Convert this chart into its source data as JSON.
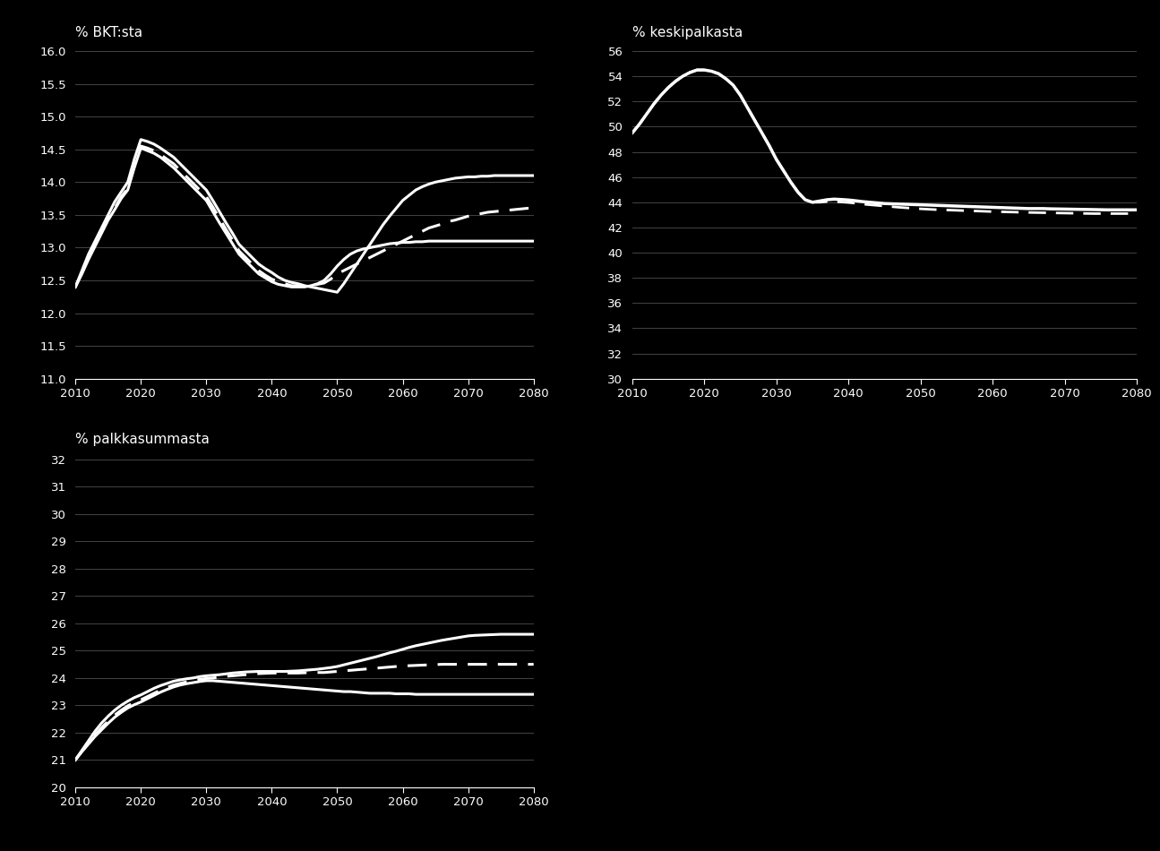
{
  "bg_color": "#000000",
  "text_color": "#ffffff",
  "grid_color": "#444444",
  "line_color": "#ffffff",
  "chart1": {
    "ylabel": "% BKT:sta",
    "ylim": [
      11.0,
      16.0
    ],
    "yticks": [
      11.0,
      11.5,
      12.0,
      12.5,
      13.0,
      13.5,
      14.0,
      14.5,
      15.0,
      15.5,
      16.0
    ],
    "xlim": [
      2010,
      2080
    ],
    "xticks": [
      2010,
      2020,
      2030,
      2040,
      2050,
      2060,
      2070,
      2080
    ],
    "years": [
      2010,
      2011,
      2012,
      2013,
      2014,
      2015,
      2016,
      2017,
      2018,
      2019,
      2020,
      2021,
      2022,
      2023,
      2024,
      2025,
      2026,
      2027,
      2028,
      2029,
      2030,
      2031,
      2032,
      2033,
      2034,
      2035,
      2036,
      2037,
      2038,
      2039,
      2040,
      2041,
      2042,
      2043,
      2044,
      2045,
      2046,
      2047,
      2048,
      2049,
      2050,
      2051,
      2052,
      2053,
      2054,
      2055,
      2056,
      2057,
      2058,
      2059,
      2060,
      2061,
      2062,
      2063,
      2064,
      2065,
      2066,
      2067,
      2068,
      2069,
      2070,
      2071,
      2072,
      2073,
      2074,
      2075,
      2076,
      2077,
      2078,
      2079,
      2080
    ],
    "line_upper": [
      12.4,
      12.65,
      12.9,
      13.1,
      13.3,
      13.5,
      13.7,
      13.85,
      14.0,
      14.35,
      14.65,
      14.62,
      14.58,
      14.52,
      14.45,
      14.38,
      14.28,
      14.18,
      14.08,
      13.98,
      13.88,
      13.72,
      13.55,
      13.38,
      13.22,
      13.05,
      12.95,
      12.85,
      12.75,
      12.68,
      12.62,
      12.55,
      12.5,
      12.47,
      12.45,
      12.42,
      12.4,
      12.38,
      12.36,
      12.34,
      12.32,
      12.45,
      12.6,
      12.75,
      12.9,
      13.05,
      13.2,
      13.35,
      13.48,
      13.6,
      13.72,
      13.8,
      13.88,
      13.93,
      13.97,
      14.0,
      14.02,
      14.04,
      14.06,
      14.07,
      14.08,
      14.08,
      14.09,
      14.09,
      14.1,
      14.1,
      14.1,
      14.1,
      14.1,
      14.1,
      14.1
    ],
    "line_mid": [
      12.4,
      12.62,
      12.85,
      13.05,
      13.25,
      13.45,
      13.6,
      13.78,
      13.9,
      14.25,
      14.55,
      14.52,
      14.48,
      14.42,
      14.35,
      14.28,
      14.18,
      14.08,
      13.98,
      13.88,
      13.78,
      13.62,
      13.45,
      13.28,
      13.12,
      12.95,
      12.85,
      12.75,
      12.65,
      12.58,
      12.52,
      12.48,
      12.45,
      12.42,
      12.42,
      12.42,
      12.42,
      12.44,
      12.46,
      12.52,
      12.6,
      12.65,
      12.7,
      12.75,
      12.8,
      12.85,
      12.9,
      12.95,
      13.0,
      13.05,
      13.1,
      13.15,
      13.2,
      13.25,
      13.3,
      13.33,
      13.36,
      13.4,
      13.42,
      13.45,
      13.48,
      13.5,
      13.52,
      13.54,
      13.55,
      13.56,
      13.57,
      13.58,
      13.59,
      13.6,
      13.6
    ],
    "line_lower": [
      12.4,
      12.6,
      12.82,
      13.02,
      13.22,
      13.42,
      13.58,
      13.75,
      13.88,
      14.22,
      14.52,
      14.48,
      14.44,
      14.38,
      14.3,
      14.22,
      14.12,
      14.02,
      13.92,
      13.82,
      13.72,
      13.55,
      13.38,
      13.22,
      13.06,
      12.9,
      12.8,
      12.7,
      12.6,
      12.54,
      12.48,
      12.44,
      12.42,
      12.4,
      12.4,
      12.4,
      12.42,
      12.45,
      12.5,
      12.6,
      12.72,
      12.82,
      12.9,
      12.95,
      12.98,
      13.0,
      13.02,
      13.04,
      13.06,
      13.07,
      13.08,
      13.08,
      13.09,
      13.09,
      13.1,
      13.1,
      13.1,
      13.1,
      13.1,
      13.1,
      13.1,
      13.1,
      13.1,
      13.1,
      13.1,
      13.1,
      13.1,
      13.1,
      13.1,
      13.1,
      13.1
    ]
  },
  "chart2": {
    "ylabel": "% keskipalkasta",
    "ylim": [
      30,
      56
    ],
    "yticks": [
      30,
      32,
      34,
      36,
      38,
      40,
      42,
      44,
      46,
      48,
      50,
      52,
      54,
      56
    ],
    "xlim": [
      2010,
      2080
    ],
    "xticks": [
      2010,
      2020,
      2030,
      2040,
      2050,
      2060,
      2070,
      2080
    ],
    "years": [
      2010,
      2011,
      2012,
      2013,
      2014,
      2015,
      2016,
      2017,
      2018,
      2019,
      2020,
      2021,
      2022,
      2023,
      2024,
      2025,
      2026,
      2027,
      2028,
      2029,
      2030,
      2031,
      2032,
      2033,
      2034,
      2035,
      2036,
      2037,
      2038,
      2039,
      2040,
      2041,
      2042,
      2043,
      2044,
      2045,
      2046,
      2047,
      2048,
      2049,
      2050,
      2051,
      2052,
      2053,
      2054,
      2055,
      2056,
      2057,
      2058,
      2059,
      2060,
      2061,
      2062,
      2063,
      2064,
      2065,
      2066,
      2067,
      2068,
      2069,
      2070,
      2071,
      2072,
      2073,
      2074,
      2075,
      2076,
      2077,
      2078,
      2079,
      2080
    ],
    "line_main": [
      49.5,
      50.2,
      51.0,
      51.8,
      52.5,
      53.1,
      53.6,
      54.0,
      54.3,
      54.5,
      54.5,
      54.4,
      54.2,
      53.8,
      53.3,
      52.5,
      51.5,
      50.5,
      49.5,
      48.5,
      47.4,
      46.5,
      45.6,
      44.8,
      44.2,
      44.0,
      44.1,
      44.2,
      44.25,
      44.22,
      44.18,
      44.12,
      44.05,
      44.0,
      43.95,
      43.9,
      43.88,
      43.86,
      43.84,
      43.82,
      43.8,
      43.78,
      43.76,
      43.74,
      43.72,
      43.7,
      43.68,
      43.66,
      43.64,
      43.62,
      43.6,
      43.58,
      43.56,
      43.54,
      43.52,
      43.5,
      43.5,
      43.5,
      43.48,
      43.47,
      43.46,
      43.45,
      43.44,
      43.43,
      43.42,
      43.41,
      43.4,
      43.4,
      43.4,
      43.4,
      43.4
    ],
    "line_dashed": [
      49.5,
      50.2,
      51.0,
      51.8,
      52.5,
      53.1,
      53.6,
      54.0,
      54.3,
      54.5,
      54.5,
      54.4,
      54.2,
      53.8,
      53.3,
      52.5,
      51.5,
      50.5,
      49.5,
      48.5,
      47.4,
      46.5,
      45.6,
      44.8,
      44.2,
      44.0,
      44.0,
      44.05,
      44.05,
      44.02,
      43.98,
      43.92,
      43.85,
      43.8,
      43.75,
      43.7,
      43.65,
      43.6,
      43.56,
      43.52,
      43.48,
      43.45,
      43.42,
      43.4,
      43.38,
      43.36,
      43.34,
      43.32,
      43.3,
      43.28,
      43.26,
      43.25,
      43.23,
      43.22,
      43.2,
      43.19,
      43.18,
      43.17,
      43.16,
      43.15,
      43.14,
      43.13,
      43.12,
      43.11,
      43.1,
      43.1,
      43.1,
      43.1,
      43.1,
      43.1,
      43.1
    ]
  },
  "chart3": {
    "ylabel": "% palkkasummasta",
    "ylim": [
      20,
      32
    ],
    "yticks": [
      20,
      21,
      22,
      23,
      24,
      25,
      26,
      27,
      28,
      29,
      30,
      31,
      32
    ],
    "xlim": [
      2010,
      2080
    ],
    "xticks": [
      2010,
      2020,
      2030,
      2040,
      2050,
      2060,
      2070,
      2080
    ],
    "years": [
      2010,
      2011,
      2012,
      2013,
      2014,
      2015,
      2016,
      2017,
      2018,
      2019,
      2020,
      2021,
      2022,
      2023,
      2024,
      2025,
      2026,
      2027,
      2028,
      2029,
      2030,
      2031,
      2032,
      2033,
      2034,
      2035,
      2036,
      2037,
      2038,
      2039,
      2040,
      2041,
      2042,
      2043,
      2044,
      2045,
      2046,
      2047,
      2048,
      2049,
      2050,
      2051,
      2052,
      2053,
      2054,
      2055,
      2056,
      2057,
      2058,
      2059,
      2060,
      2061,
      2062,
      2063,
      2064,
      2065,
      2066,
      2067,
      2068,
      2069,
      2070,
      2071,
      2072,
      2073,
      2074,
      2075,
      2076,
      2077,
      2078,
      2079,
      2080
    ],
    "line_upper": [
      21.0,
      21.35,
      21.7,
      22.05,
      22.35,
      22.6,
      22.82,
      23.0,
      23.15,
      23.28,
      23.38,
      23.5,
      23.62,
      23.72,
      23.8,
      23.88,
      23.93,
      23.97,
      24.0,
      24.05,
      24.08,
      24.1,
      24.12,
      24.15,
      24.18,
      24.2,
      24.22,
      24.23,
      24.24,
      24.24,
      24.24,
      24.24,
      24.24,
      24.25,
      24.26,
      24.28,
      24.3,
      24.32,
      24.35,
      24.38,
      24.42,
      24.48,
      24.54,
      24.6,
      24.66,
      24.72,
      24.78,
      24.85,
      24.92,
      24.98,
      25.05,
      25.12,
      25.18,
      25.23,
      25.28,
      25.33,
      25.38,
      25.42,
      25.46,
      25.5,
      25.54,
      25.56,
      25.57,
      25.58,
      25.59,
      25.6,
      25.6,
      25.6,
      25.6,
      25.6,
      25.6
    ],
    "line_mid": [
      21.0,
      21.32,
      21.62,
      21.92,
      22.18,
      22.42,
      22.64,
      22.82,
      22.98,
      23.1,
      23.2,
      23.32,
      23.44,
      23.55,
      23.65,
      23.74,
      23.8,
      23.86,
      23.9,
      23.95,
      23.98,
      24.0,
      24.03,
      24.06,
      24.08,
      24.1,
      24.12,
      24.14,
      24.16,
      24.17,
      24.18,
      24.18,
      24.18,
      24.18,
      24.18,
      24.19,
      24.2,
      24.2,
      24.2,
      24.22,
      24.24,
      24.26,
      24.28,
      24.3,
      24.32,
      24.34,
      24.36,
      24.38,
      24.4,
      24.42,
      24.44,
      24.45,
      24.46,
      24.47,
      24.48,
      24.49,
      24.5,
      24.5,
      24.5,
      24.5,
      24.5,
      24.5,
      24.5,
      24.5,
      24.5,
      24.5,
      24.5,
      24.5,
      24.5,
      24.5,
      24.5
    ],
    "line_lower": [
      21.0,
      21.3,
      21.58,
      21.86,
      22.1,
      22.34,
      22.56,
      22.74,
      22.9,
      23.02,
      23.12,
      23.24,
      23.36,
      23.48,
      23.58,
      23.67,
      23.74,
      23.79,
      23.83,
      23.87,
      23.9,
      23.9,
      23.88,
      23.86,
      23.84,
      23.82,
      23.8,
      23.78,
      23.76,
      23.74,
      23.72,
      23.7,
      23.68,
      23.66,
      23.64,
      23.62,
      23.6,
      23.58,
      23.56,
      23.54,
      23.52,
      23.5,
      23.5,
      23.48,
      23.46,
      23.44,
      23.44,
      23.44,
      23.44,
      23.42,
      23.42,
      23.42,
      23.4,
      23.4,
      23.4,
      23.4,
      23.4,
      23.4,
      23.4,
      23.4,
      23.4,
      23.4,
      23.4,
      23.4,
      23.4,
      23.4,
      23.4,
      23.4,
      23.4,
      23.4,
      23.4
    ]
  }
}
